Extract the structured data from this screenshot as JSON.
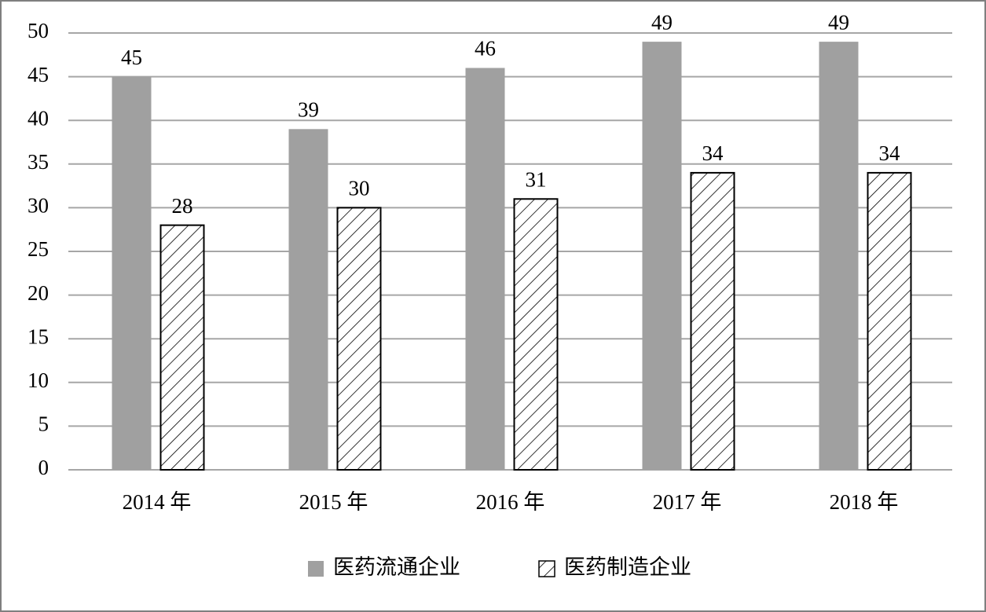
{
  "chart_data": {
    "type": "bar",
    "categories": [
      "2014 年",
      "2015 年",
      "2016 年",
      "2017 年",
      "2018 年"
    ],
    "series": [
      {
        "name": "医药流通企业",
        "color": "#a0a0a0",
        "pattern": "solid",
        "values": [
          45,
          39,
          46,
          49,
          49
        ]
      },
      {
        "name": "医药制造企业",
        "color": "#000000",
        "pattern": "hatch",
        "values": [
          28,
          30,
          31,
          34,
          34
        ]
      }
    ],
    "ylim": [
      0,
      50
    ],
    "yticks": [
      0,
      5,
      10,
      15,
      20,
      25,
      30,
      35,
      40,
      45,
      50
    ],
    "grid": true,
    "legend": "bottom"
  }
}
